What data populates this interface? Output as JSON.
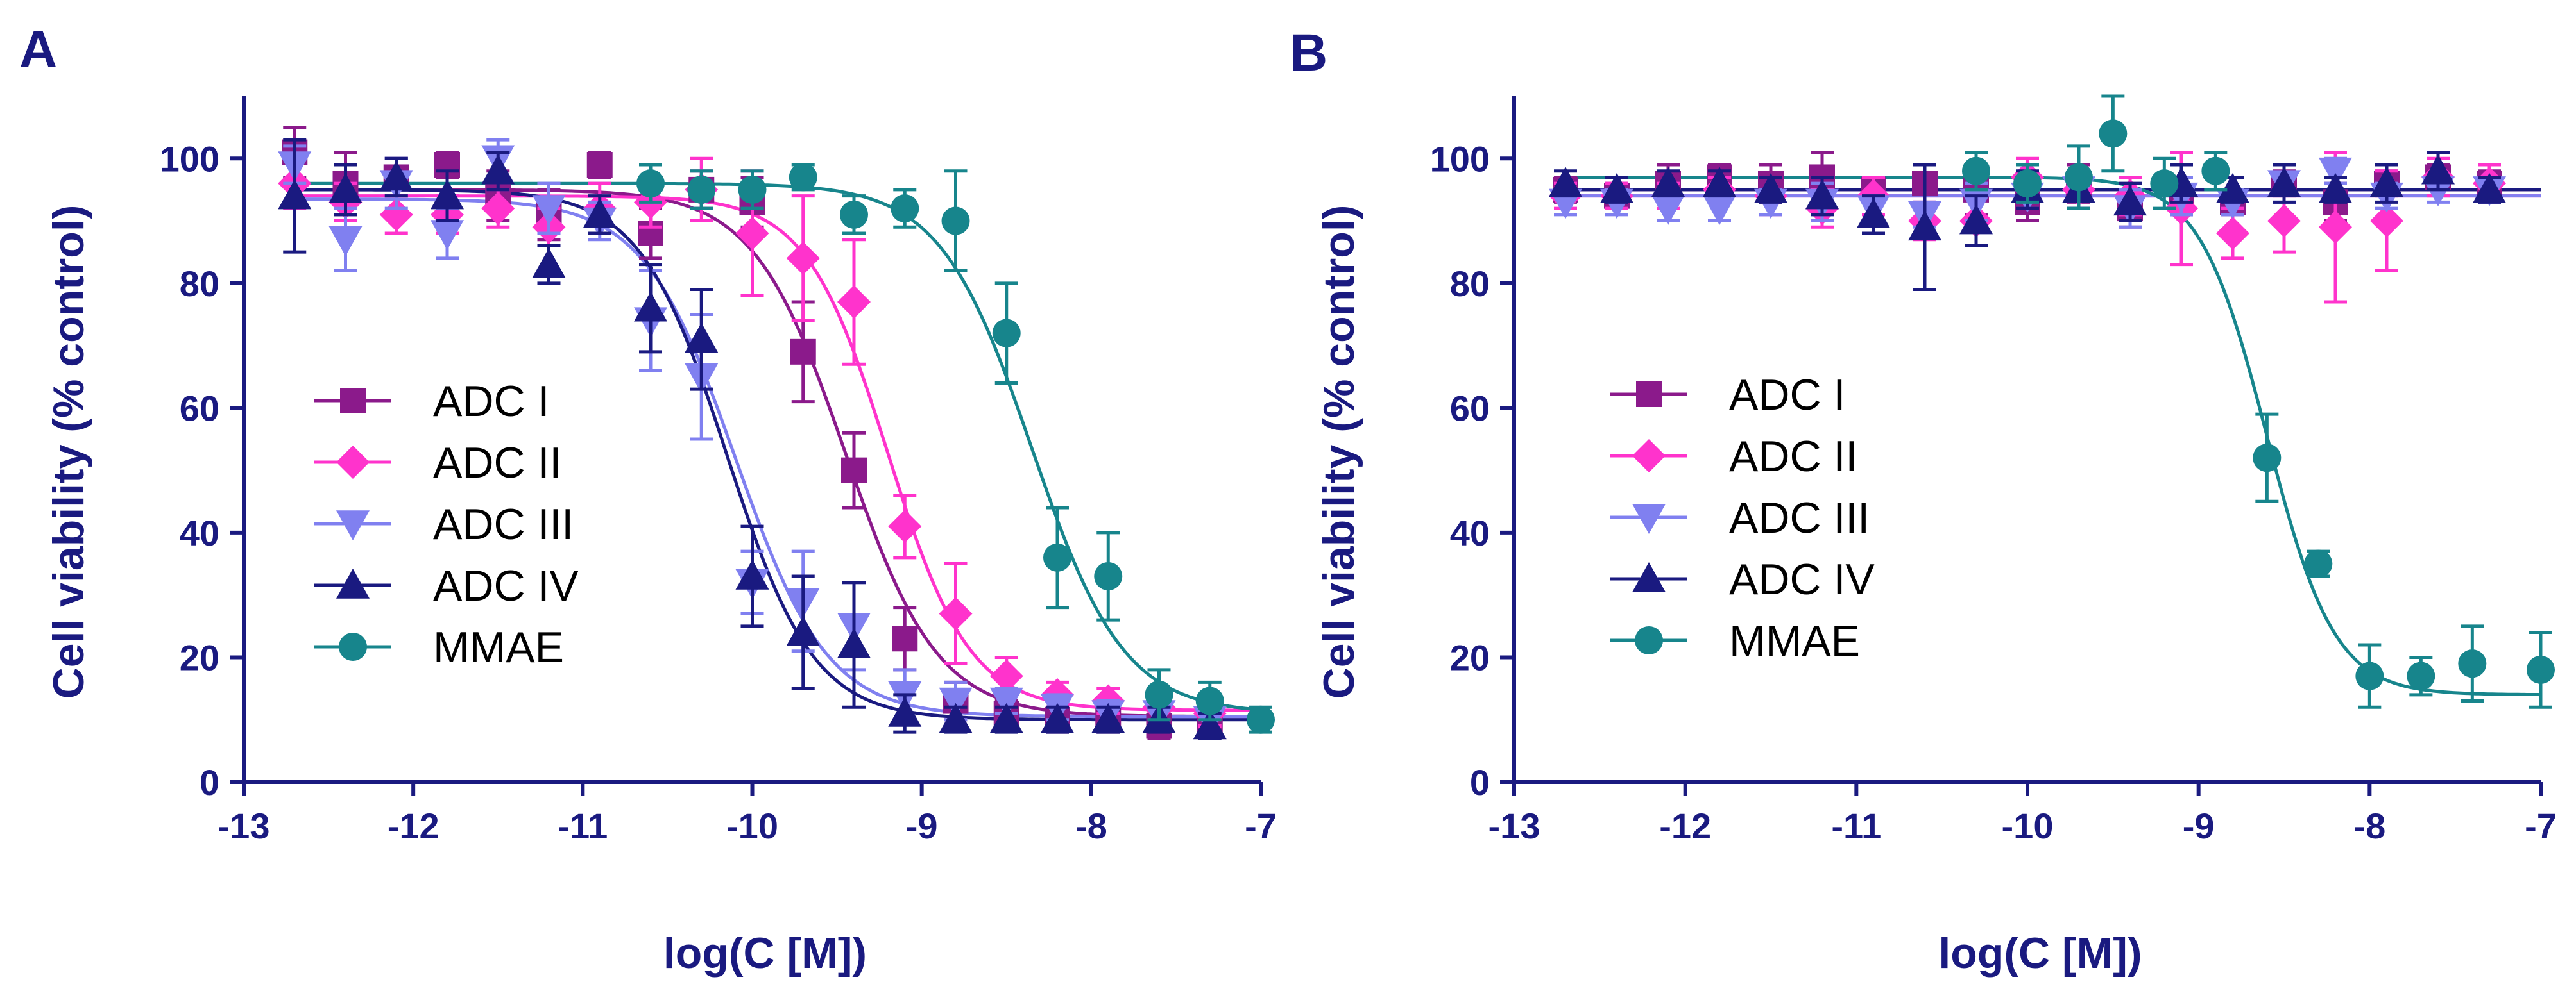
{
  "colors": {
    "axis": "#1a1a80",
    "ADC I": "#8b1a8b",
    "ADC II": "#ff33cc",
    "ADC III": "#8080f0",
    "ADC IV": "#1a1a80",
    "MMAE": "#17858c"
  },
  "chart_data": [
    {
      "panel": "A",
      "type": "scatter",
      "xlabel": "log(C [M])",
      "ylabel": "Cell viability (% control)",
      "xlim": [
        -13,
        -7
      ],
      "ylim": [
        0,
        110
      ],
      "xticks": [
        -13,
        -12,
        -11,
        -10,
        -9,
        -8,
        -7
      ],
      "yticks": [
        0,
        20,
        40,
        60,
        80,
        100
      ],
      "legend": [
        "ADC I",
        "ADC II",
        "ADC III",
        "ADC IV",
        "MMAE"
      ],
      "series": [
        {
          "name": "ADC I",
          "marker": "square",
          "x": [
            -12.7,
            -12.4,
            -12.1,
            -11.8,
            -11.5,
            -11.2,
            -10.9,
            -10.6,
            -10.3,
            -10.0,
            -9.7,
            -9.4,
            -9.1,
            -8.8,
            -8.5,
            -8.2,
            -7.9,
            -7.6,
            -7.3
          ],
          "y": [
            101,
            96,
            97,
            99,
            94,
            91,
            99,
            88,
            95,
            93,
            69,
            50,
            23,
            13,
            11,
            10,
            10,
            9,
            10
          ],
          "err": [
            4,
            5,
            3,
            2,
            4,
            4,
            2,
            4,
            3,
            4,
            8,
            6,
            5,
            3,
            2,
            2,
            2,
            2,
            2
          ],
          "fit": {
            "top": 95,
            "bottom": 10.5,
            "logIC50": -9.45,
            "hill": 1.6
          }
        },
        {
          "name": "ADC II",
          "marker": "diamond",
          "x": [
            -12.7,
            -12.4,
            -12.1,
            -11.8,
            -11.5,
            -11.2,
            -10.9,
            -10.6,
            -10.3,
            -10.0,
            -9.7,
            -9.4,
            -9.1,
            -8.8,
            -8.5,
            -8.2,
            -7.9,
            -7.6,
            -7.3
          ],
          "y": [
            96,
            93,
            91,
            91,
            92,
            89,
            92,
            93,
            95,
            88,
            84,
            77,
            41,
            27,
            17,
            14,
            13,
            12,
            11
          ],
          "err": [
            4,
            3,
            3,
            3,
            3,
            3,
            4,
            4,
            5,
            10,
            10,
            10,
            5,
            8,
            3,
            2,
            2,
            2,
            2
          ],
          "fit": {
            "top": 94,
            "bottom": 11.5,
            "logIC50": -9.2,
            "hill": 1.8
          }
        },
        {
          "name": "ADC III",
          "marker": "triangle-down",
          "x": [
            -12.7,
            -12.4,
            -12.1,
            -11.8,
            -11.5,
            -11.2,
            -10.9,
            -10.6,
            -10.3,
            -10.0,
            -9.7,
            -9.4,
            -9.1,
            -8.8,
            -8.5,
            -8.2,
            -7.9,
            -7.6,
            -7.3
          ],
          "y": [
            99,
            87,
            96,
            88,
            100,
            92,
            90,
            74,
            65,
            32,
            29,
            25,
            14,
            13,
            13,
            12,
            11,
            11,
            10
          ],
          "err": [
            3,
            5,
            4,
            4,
            3,
            4,
            3,
            8,
            10,
            5,
            8,
            7,
            4,
            3,
            2,
            2,
            2,
            2,
            2
          ],
          "fit": {
            "top": 93.5,
            "bottom": 10.5,
            "logIC50": -10.1,
            "hill": 1.6
          }
        },
        {
          "name": "ADC IV",
          "marker": "triangle-up",
          "x": [
            -12.7,
            -12.4,
            -12.1,
            -11.8,
            -11.5,
            -11.2,
            -10.9,
            -10.6,
            -10.3,
            -10.0,
            -9.7,
            -9.4,
            -9.1,
            -8.8,
            -8.5,
            -8.2,
            -7.9,
            -7.6,
            -7.3
          ],
          "y": [
            94,
            95,
            97,
            94,
            98,
            83,
            91,
            76,
            71,
            33,
            24,
            22,
            11,
            10,
            10,
            10,
            10,
            10,
            9
          ],
          "err": [
            9,
            4,
            3,
            4,
            3,
            3,
            3,
            7,
            8,
            8,
            9,
            10,
            3,
            2,
            2,
            2,
            2,
            2,
            2
          ],
          "fit": {
            "top": 95,
            "bottom": 10,
            "logIC50": -10.15,
            "hill": 1.7
          }
        },
        {
          "name": "MMAE",
          "marker": "circle",
          "x": [
            -10.6,
            -10.3,
            -10.0,
            -9.7,
            -9.4,
            -9.1,
            -8.8,
            -8.5,
            -8.2,
            -7.9,
            -7.6,
            -7.3,
            -7.0
          ],
          "y": [
            96,
            95,
            95,
            97,
            91,
            92,
            90,
            72,
            36,
            33,
            14,
            13,
            10
          ],
          "err": [
            3,
            3,
            3,
            2,
            3,
            3,
            8,
            8,
            8,
            7,
            4,
            3,
            2
          ],
          "fit": {
            "top": 96,
            "bottom": 11,
            "logIC50": -8.35,
            "hill": 1.6
          }
        }
      ]
    },
    {
      "panel": "B",
      "type": "scatter",
      "xlabel": "log(C [M])",
      "ylabel": "Cell viability (% control)",
      "xlim": [
        -13,
        -7
      ],
      "ylim": [
        0,
        110
      ],
      "xticks": [
        -13,
        -12,
        -11,
        -10,
        -9,
        -8,
        -7
      ],
      "yticks": [
        0,
        20,
        40,
        60,
        80,
        100
      ],
      "legend": [
        "ADC I",
        "ADC II",
        "ADC III",
        "ADC IV",
        "MMAE"
      ],
      "series": [
        {
          "name": "ADC I",
          "marker": "square",
          "x": [
            -12.7,
            -12.4,
            -12.1,
            -11.8,
            -11.5,
            -11.2,
            -10.9,
            -10.6,
            -10.3,
            -10.0,
            -9.7,
            -9.4,
            -9.1,
            -8.8,
            -8.5,
            -8.2,
            -7.9,
            -7.6,
            -7.3
          ],
          "y": [
            95,
            94,
            96,
            97,
            96,
            97,
            95,
            96,
            95,
            93,
            96,
            92,
            94,
            93,
            96,
            93,
            96,
            97,
            96
          ],
          "err": [
            2,
            2,
            3,
            2,
            3,
            4,
            2,
            3,
            4,
            3,
            3,
            3,
            3,
            2,
            2,
            3,
            2,
            2,
            2
          ],
          "fit": {
            "top": 95,
            "bottom": 95,
            "logIC50": -10,
            "hill": 1
          }
        },
        {
          "name": "ADC II",
          "marker": "diamond",
          "x": [
            -12.7,
            -12.4,
            -12.1,
            -11.8,
            -11.5,
            -11.2,
            -10.9,
            -10.6,
            -10.3,
            -10.0,
            -9.7,
            -9.4,
            -9.1,
            -8.8,
            -8.5,
            -8.2,
            -7.9,
            -7.6,
            -7.3
          ],
          "y": [
            94,
            94,
            94,
            95,
            94,
            92,
            94,
            90,
            90,
            97,
            95,
            94,
            92,
            88,
            90,
            89,
            90,
            97,
            96
          ],
          "err": [
            2,
            2,
            2,
            2,
            3,
            3,
            3,
            3,
            4,
            3,
            3,
            3,
            9,
            4,
            5,
            12,
            8,
            3,
            3
          ],
          "fit": {
            "top": 94,
            "bottom": 94,
            "logIC50": -10,
            "hill": 1
          }
        },
        {
          "name": "ADC III",
          "marker": "triangle-down",
          "x": [
            -12.7,
            -12.4,
            -12.1,
            -11.8,
            -11.5,
            -11.2,
            -10.9,
            -10.6,
            -10.3,
            -10.0,
            -9.7,
            -9.4,
            -9.1,
            -8.8,
            -8.5,
            -8.2,
            -7.9,
            -7.6,
            -7.3
          ],
          "y": [
            93,
            93,
            92,
            92,
            93,
            93,
            92,
            91,
            93,
            94,
            95,
            92,
            94,
            93,
            96,
            98,
            94,
            95,
            95
          ],
          "err": [
            2,
            2,
            2,
            2,
            2,
            3,
            2,
            2,
            3,
            2,
            3,
            3,
            3,
            2,
            3,
            2,
            2,
            2,
            2
          ],
          "fit": {
            "top": 94,
            "bottom": 94,
            "logIC50": -10,
            "hill": 1
          }
        },
        {
          "name": "ADC IV",
          "marker": "triangle-up",
          "x": [
            -12.7,
            -12.4,
            -12.1,
            -11.8,
            -11.5,
            -11.2,
            -10.9,
            -10.6,
            -10.3,
            -10.0,
            -9.7,
            -9.4,
            -9.1,
            -8.8,
            -8.5,
            -8.2,
            -7.9,
            -7.6,
            -7.3
          ],
          "y": [
            96,
            95,
            96,
            96,
            95,
            94,
            91,
            89,
            90,
            95,
            95,
            93,
            96,
            95,
            96,
            95,
            96,
            98,
            95
          ],
          "err": [
            2,
            2,
            2,
            2,
            2,
            3,
            3,
            10,
            4,
            3,
            3,
            3,
            3,
            2,
            3,
            2,
            3,
            3,
            2
          ],
          "fit": {
            "top": 95,
            "bottom": 95,
            "logIC50": -10,
            "hill": 1
          }
        },
        {
          "name": "MMAE",
          "marker": "circle",
          "x": [
            -10.3,
            -10.0,
            -9.7,
            -9.5,
            -9.2,
            -8.9,
            -8.6,
            -8.3,
            -8.0,
            -7.7,
            -7.4,
            -7.0
          ],
          "y": [
            98,
            96,
            97,
            104,
            96,
            98,
            52,
            35,
            17,
            17,
            19,
            18
          ],
          "err": [
            3,
            3,
            5,
            6,
            4,
            3,
            7,
            2,
            5,
            3,
            6,
            6
          ],
          "fit": {
            "top": 97,
            "bottom": 14,
            "logIC50": -8.6,
            "hill": 2.2
          }
        }
      ]
    }
  ]
}
